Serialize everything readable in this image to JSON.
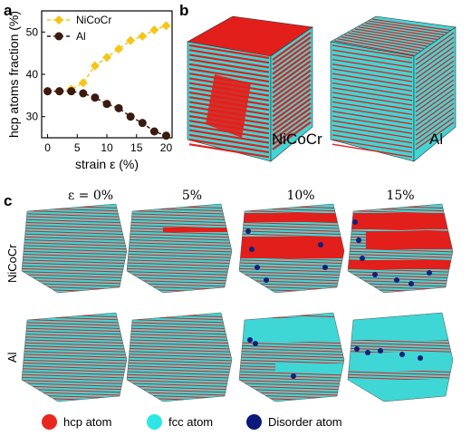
{
  "panels": {
    "a": {
      "letter": "a"
    },
    "b": {
      "letter": "b",
      "labels": [
        "NiCoCr",
        "Al"
      ]
    },
    "c": {
      "letter": "c",
      "strain_labels": [
        "ε = 0%",
        "5%",
        "10%",
        "15%"
      ],
      "row_labels": [
        "NiCoCr",
        "Al"
      ]
    }
  },
  "chart_data": {
    "type": "line",
    "xlabel": "strain ε (%)",
    "ylabel": "hcp atoms fraction (%)",
    "xlim": [
      -1,
      21
    ],
    "ylim": [
      25,
      55
    ],
    "xticks": [
      0,
      5,
      10,
      15,
      20
    ],
    "yticks": [
      30,
      40,
      50
    ],
    "legend_position": "top-left",
    "series": [
      {
        "name": "NiCoCr",
        "color": "#f5c518",
        "marker": "diamond",
        "linestyle": "dashed",
        "x": [
          0,
          2,
          4,
          6,
          8,
          10,
          12,
          14,
          16,
          18,
          20
        ],
        "y": [
          36,
          36,
          36.5,
          38,
          42,
          44,
          46,
          48,
          49,
          50.5,
          51.5
        ]
      },
      {
        "name": "Al",
        "color": "#3b1a10",
        "marker": "circle",
        "linestyle": "dashed",
        "x": [
          0,
          2,
          4,
          6,
          8,
          10,
          12,
          14,
          16,
          18,
          20
        ],
        "y": [
          36,
          36,
          36,
          35.5,
          34.5,
          33,
          32,
          30,
          28.5,
          26.5,
          25.5
        ]
      }
    ]
  },
  "legend": {
    "items": [
      {
        "label": "hcp atom",
        "color": "#e8281e"
      },
      {
        "label": "fcc atom",
        "color": "#2ee6e6"
      },
      {
        "label": "Disorder atom",
        "color": "#0a1a7a"
      }
    ]
  },
  "colors": {
    "hcp": "#e21f1a",
    "fcc": "#3fd6d6",
    "disorder": "#11207a"
  }
}
